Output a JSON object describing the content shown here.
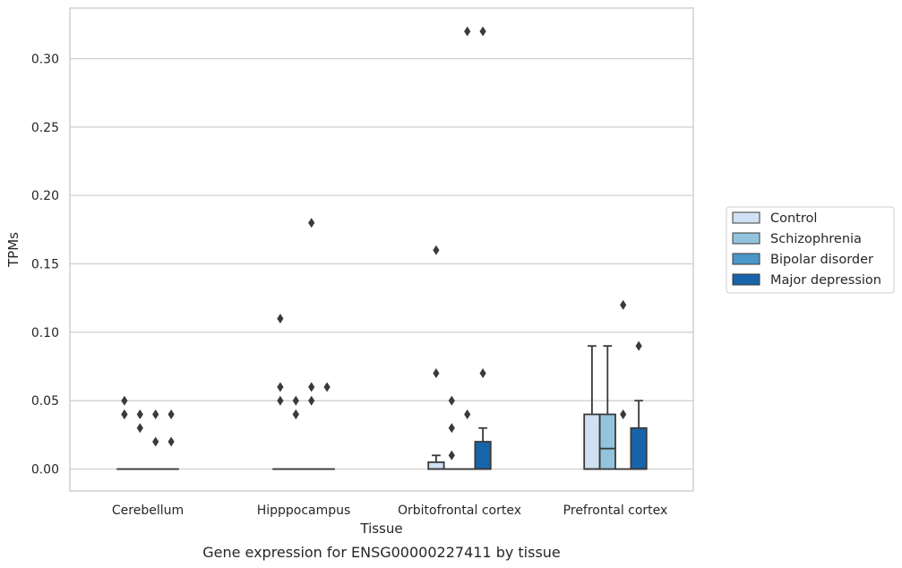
{
  "chart_data": {
    "type": "box",
    "caption": "Gene expression for ENSG00000227411 by tissue",
    "xlabel": "Tissue",
    "ylabel": "TPMs",
    "ylim": [
      -0.016,
      0.337
    ],
    "yticks": [
      "0.00",
      "0.05",
      "0.10",
      "0.15",
      "0.20",
      "0.25",
      "0.30"
    ],
    "grid": "horizontal",
    "legend_position": "right",
    "categories": [
      "Cerebellum",
      "Hipppocampus",
      "Orbitofrontal cortex",
      "Prefrontal cortex"
    ],
    "series": [
      {
        "name": "Control",
        "color": "#cfe1f2"
      },
      {
        "name": "Schizophrenia",
        "color": "#93c4de"
      },
      {
        "name": "Bipolar disorder",
        "color": "#4a98c9"
      },
      {
        "name": "Major depression",
        "color": "#1764ab"
      }
    ],
    "boxes": [
      [
        {
          "q1": 0,
          "median": 0,
          "q3": 0,
          "whisker_low": 0,
          "whisker_high": 0,
          "outliers": [
            0.04,
            0.05,
            0.04
          ]
        },
        {
          "q1": 0,
          "median": 0,
          "q3": 0,
          "whisker_low": 0,
          "whisker_high": 0,
          "outliers": [
            0.03,
            0.04
          ]
        },
        {
          "q1": 0,
          "median": 0,
          "q3": 0,
          "whisker_low": 0,
          "whisker_high": 0,
          "outliers": [
            0.02,
            0.04
          ]
        },
        {
          "q1": 0,
          "median": 0,
          "q3": 0,
          "whisker_low": 0,
          "whisker_high": 0,
          "outliers": [
            0.02,
            0.04
          ]
        }
      ],
      [
        {
          "q1": 0,
          "median": 0,
          "q3": 0,
          "whisker_low": 0,
          "whisker_high": 0,
          "outliers": [
            0.05,
            0.06,
            0.11
          ]
        },
        {
          "q1": 0,
          "median": 0,
          "q3": 0,
          "whisker_low": 0,
          "whisker_high": 0,
          "outliers": [
            0.04,
            0.04,
            0.05
          ]
        },
        {
          "q1": 0,
          "median": 0,
          "q3": 0,
          "whisker_low": 0,
          "whisker_high": 0,
          "outliers": [
            0.05,
            0.06,
            0.18
          ]
        },
        {
          "q1": 0,
          "median": 0,
          "q3": 0,
          "whisker_low": 0,
          "whisker_high": 0,
          "outliers": [
            0.06
          ]
        }
      ],
      [
        {
          "q1": 0,
          "median": 0,
          "q3": 0.005,
          "whisker_low": 0,
          "whisker_high": 0.01,
          "outliers": [
            0.07,
            0.16
          ]
        },
        {
          "q1": 0,
          "median": 0,
          "q3": 0,
          "whisker_low": 0,
          "whisker_high": 0,
          "outliers": [
            0.01,
            0.03,
            0.05
          ]
        },
        {
          "q1": 0,
          "median": 0,
          "q3": 0,
          "whisker_low": 0,
          "whisker_high": 0,
          "outliers": [
            0.04,
            0.32
          ]
        },
        {
          "q1": 0,
          "median": 0,
          "q3": 0.02,
          "whisker_low": 0,
          "whisker_high": 0.03,
          "outliers": [
            0.07,
            0.32
          ]
        }
      ],
      [
        {
          "q1": 0,
          "median": 0,
          "q3": 0.04,
          "whisker_low": 0,
          "whisker_high": 0.09,
          "outliers": []
        },
        {
          "q1": 0,
          "median": 0.015,
          "q3": 0.04,
          "whisker_low": 0,
          "whisker_high": 0.09,
          "outliers": []
        },
        {
          "q1": 0,
          "median": 0,
          "q3": 0,
          "whisker_low": 0,
          "whisker_high": 0,
          "outliers": [
            0.04,
            0.12
          ]
        },
        {
          "q1": 0,
          "median": 0,
          "q3": 0.03,
          "whisker_low": 0,
          "whisker_high": 0.05,
          "outliers": [
            0.09
          ]
        }
      ]
    ]
  }
}
